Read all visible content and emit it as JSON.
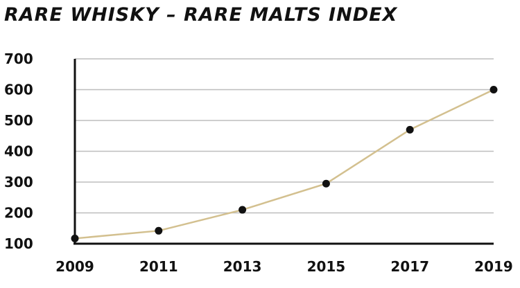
{
  "chart_data": {
    "type": "line",
    "title": "RARE WHISKY – RARE MALTS INDEX",
    "xlabel": "",
    "ylabel": "",
    "x": [
      2009,
      2011,
      2013,
      2015,
      2017,
      2019
    ],
    "xticks": [
      "2009",
      "2011",
      "2013",
      "2015",
      "2017",
      "2019"
    ],
    "series": [
      {
        "values": [
          117,
          142,
          210,
          295,
          470,
          600
        ]
      }
    ],
    "xlim": [
      2009,
      2019
    ],
    "ylim": [
      100,
      700
    ],
    "yticks": [
      100,
      200,
      300,
      400,
      500,
      600,
      700
    ],
    "grid": true,
    "legend": "none",
    "colors": {
      "line": "#d3c08f",
      "marker": "#111111",
      "grid": "#bdbdbd",
      "text": "#111111"
    }
  }
}
